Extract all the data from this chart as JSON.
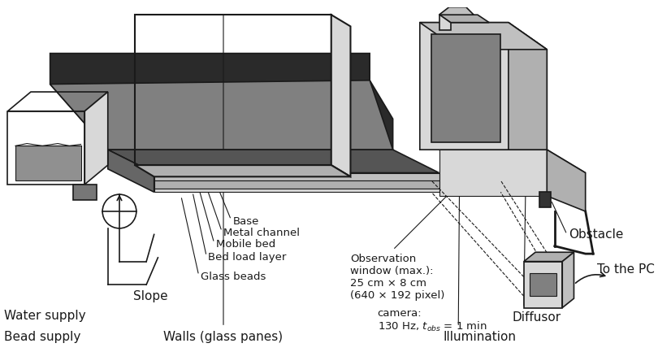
{
  "title": "",
  "bg_color": "#ffffff",
  "labels": {
    "walls": "Walls (glass panes)",
    "bead_supply": "Bead supply",
    "glass_beads": "Glass beads",
    "bed_load_layer": "Bed load layer",
    "mobile_bed": "Mobile bed",
    "metal_channel": "Metal channel",
    "base": "Base",
    "slope": "Slope",
    "water_supply": "Water supply",
    "illumination": "Illumination",
    "diffusor": "Diffusor",
    "obstacle": "Obstacle",
    "observation_window": "Observation\nwindow (max.):\n25 cm × 8 cm\n(640 × 192 pixel)",
    "camera": "camera:\n130 Hz, $t_{obs}$ = 1 min",
    "to_pc": "To the PC"
  },
  "colors": {
    "black": "#1a1a1a",
    "dark_gray": "#404040",
    "mid_gray": "#808080",
    "light_gray": "#b0b0b0",
    "very_light_gray": "#d8d8d8",
    "bead_gray": "#909090",
    "dark_fill": "#303030",
    "slope_dark": "#2a2a2a",
    "channel_gray": "#c0c0c0",
    "glass_fill": "#e8e8e8"
  },
  "line_width": 1.2,
  "annotation_fontsize": 9.5,
  "label_fontsize": 11
}
